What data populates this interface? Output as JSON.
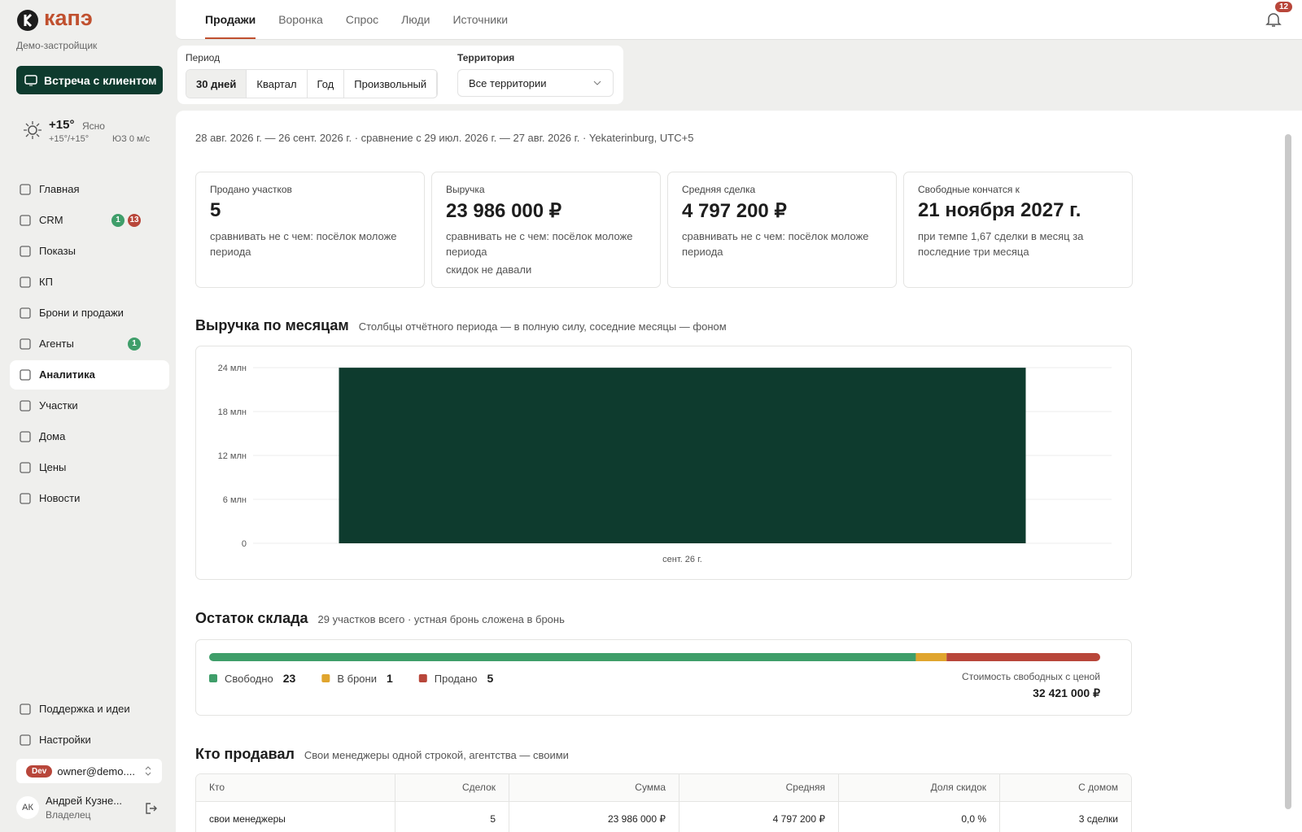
{
  "sidebar": {
    "brand": "капэ",
    "org": "Демо-застройщик",
    "meeting_button": "Встреча с клиентом",
    "weather": {
      "temp": "+15°",
      "condition": "Ясно",
      "range": "+15°/+15°",
      "wind": "ЮЗ 0 м/с"
    },
    "nav": [
      {
        "label": "Главная"
      },
      {
        "label": "CRM",
        "badges": [
          {
            "text": "1",
            "color": "#3f9e6a"
          },
          {
            "text": "13",
            "color": "#b8463a"
          }
        ]
      },
      {
        "label": "Показы"
      },
      {
        "label": "КП"
      },
      {
        "label": "Брони и продажи"
      },
      {
        "label": "Агенты",
        "badges": [
          {
            "text": "1",
            "color": "#3f9e6a"
          }
        ]
      },
      {
        "label": "Аналитика"
      },
      {
        "label": "Участки"
      },
      {
        "label": "Дома"
      },
      {
        "label": "Цены"
      },
      {
        "label": "Новости"
      }
    ],
    "active_nav": 6,
    "footer_nav": [
      "Поддержка и идеи",
      "Настройки"
    ],
    "account": {
      "env": "Dev",
      "email": "owner@demo....",
      "user": "Андрей Кузне...",
      "role": "Владелец",
      "initials": "АК"
    }
  },
  "tabs": {
    "items": [
      "Продажи",
      "Воронка",
      "Спрос",
      "Люди",
      "Источники"
    ],
    "active": 0
  },
  "notifications": "12",
  "filters": {
    "period_label": "Период",
    "periods": [
      "30 дней",
      "Квартал",
      "Год",
      "Произвольный"
    ],
    "active_period": 0,
    "territory_label": "Территория",
    "territory": "Все территории"
  },
  "range_text": "28 авг. 2026 г. — 26 сент. 2026 г. · сравнение с 29 июл. 2026 г. — 27 авг. 2026 г. · Yekaterinburg, UTC+5",
  "kpis": [
    {
      "label": "Продано участков",
      "value": "5",
      "notes": [
        "сравнивать не с чем: посёлок моложе периода"
      ]
    },
    {
      "label": "Выручка",
      "value": "23 986 000 ₽",
      "notes": [
        "сравнивать не с чем: посёлок моложе периода",
        "скидок не давали"
      ]
    },
    {
      "label": "Средняя сделка",
      "value": "4 797 200 ₽",
      "notes": [
        "сравнивать не с чем: посёлок моложе периода"
      ]
    },
    {
      "label": "Свободные кончатся к",
      "value": "21 ноября 2027 г.",
      "notes": [
        "при темпе 1,67 сделки в месяц за последние три месяца"
      ]
    }
  ],
  "chart_data": [
    {
      "type": "bar",
      "title": "Выручка по месяцам",
      "subtitle": "Столбцы отчётного периода — в полную силу, соседние месяцы — фоном",
      "categories": [
        "сент. 26 г."
      ],
      "values": [
        23.986
      ],
      "color": "#0e3b2e",
      "ylim": [
        0,
        24
      ],
      "yticks": [
        0,
        {
          "value": 6,
          "label": "6 млн"
        },
        {
          "value": 12,
          "label": "12 млн"
        },
        {
          "value": 18,
          "label": "18 млн"
        },
        {
          "value": 24,
          "label": "24 млн"
        }
      ],
      "grid": true
    },
    {
      "type": "stacked_bar",
      "title": "Остаток склада",
      "subtitle": "29 участков всего · устная бронь сложена в бронь",
      "series": [
        {
          "name": "Свободно",
          "color": "#3f9e6a",
          "values": [
            23
          ]
        },
        {
          "name": "В брони",
          "color": "#e0a52e",
          "values": [
            1
          ]
        },
        {
          "name": "Продано",
          "color": "#b8463a",
          "values": [
            5
          ]
        }
      ],
      "note": "Стоимость свободных с ценой",
      "note_value": "32 421 000 ₽"
    }
  ],
  "sellers": {
    "title": "Кто продавал",
    "subtitle": "Свои менеджеры одной строкой, агентства — своими",
    "columns": [
      "Кто",
      "Сделок",
      "Сумма",
      "Средняя",
      "Доля скидок",
      "С домом"
    ],
    "rows": [
      [
        "свои менеджеры",
        "5",
        "23 986 000 ₽",
        "4 797 200 ₽",
        "0,0 %",
        "3 сделки"
      ]
    ]
  }
}
